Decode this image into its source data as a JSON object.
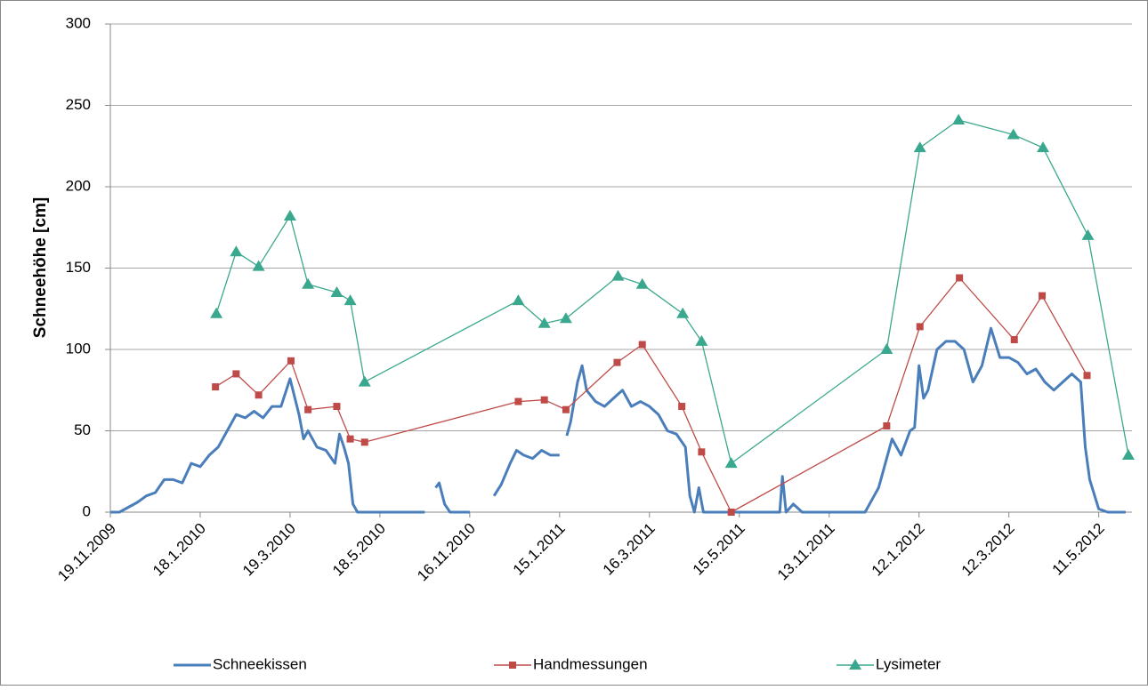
{
  "chart_data": {
    "type": "line",
    "y_label": "Schneehöhe [cm]",
    "xlim": [
      0,
      11.37
    ],
    "xticks": [
      {
        "value": 0,
        "label": "19.11.2009"
      },
      {
        "value": 1,
        "label": "18.1.2010"
      },
      {
        "value": 2,
        "label": "19.3.2010"
      },
      {
        "value": 3,
        "label": "18.5.2010"
      },
      {
        "value": 4,
        "label": "16.11.2010"
      },
      {
        "value": 5,
        "label": "15.1.2011"
      },
      {
        "value": 6,
        "label": "16.3.2011"
      },
      {
        "value": 7,
        "label": "15.5.2011"
      },
      {
        "value": 8,
        "label": "13.11.2011"
      },
      {
        "value": 9,
        "label": "12.1.2012"
      },
      {
        "value": 10,
        "label": "12.3.2012"
      },
      {
        "value": 11,
        "label": "11.5.2012"
      }
    ],
    "ylim": [
      0,
      300
    ],
    "yticks": [
      0,
      50,
      100,
      150,
      200,
      250,
      300
    ],
    "grid": true,
    "legend": "bottom",
    "series": [
      {
        "name": "Schneekissen",
        "color": "#4a7ebb",
        "marker": "none",
        "x": [
          0,
          0.1,
          0.2,
          0.3,
          0.4,
          0.5,
          0.6,
          0.7,
          0.8,
          0.9,
          1.0,
          1.1,
          1.2,
          1.3,
          1.4,
          1.5,
          1.6,
          1.7,
          1.8,
          1.9,
          2.0,
          2.1,
          2.15,
          2.2,
          2.3,
          2.4,
          2.5,
          2.55,
          2.6,
          2.65,
          2.7,
          2.75,
          3.0,
          3.5,
          3.56,
          3.62,
          3.66,
          3.72,
          3.78,
          4.0,
          4.1,
          4.27,
          4.35,
          4.45,
          4.52,
          4.6,
          4.7,
          4.8,
          4.9,
          5.0,
          5.04,
          5.08,
          5.12,
          5.2,
          5.25,
          5.3,
          5.4,
          5.5,
          5.6,
          5.7,
          5.8,
          5.9,
          6.0,
          6.1,
          6.2,
          6.3,
          6.4,
          6.45,
          6.5,
          6.55,
          6.6,
          7.0,
          7.45,
          7.48,
          7.52,
          7.6,
          7.7,
          8.0,
          8.4,
          8.5,
          8.55,
          8.6,
          8.7,
          8.8,
          8.9,
          8.95,
          9.0,
          9.05,
          9.1,
          9.2,
          9.3,
          9.4,
          9.5,
          9.6,
          9.7,
          9.8,
          9.9,
          10.0,
          10.1,
          10.2,
          10.3,
          10.4,
          10.5,
          10.6,
          10.7,
          10.8,
          10.85,
          10.9,
          11.0,
          11.1,
          11.3
        ],
        "values": [
          0,
          0,
          3,
          6,
          10,
          12,
          20,
          20,
          18,
          30,
          28,
          35,
          40,
          50,
          60,
          58,
          62,
          58,
          65,
          65,
          82,
          60,
          45,
          50,
          40,
          38,
          30,
          48,
          40,
          30,
          5,
          0,
          0,
          0,
          null,
          15,
          18,
          5,
          0,
          0,
          null,
          10,
          17,
          30,
          38,
          35,
          33,
          38,
          35,
          35,
          null,
          47,
          55,
          80,
          90,
          75,
          68,
          65,
          70,
          75,
          65,
          68,
          65,
          60,
          50,
          48,
          40,
          10,
          0,
          15,
          0,
          0,
          0,
          22,
          0,
          5,
          0,
          0,
          0,
          10,
          15,
          25,
          45,
          35,
          50,
          52,
          90,
          70,
          75,
          100,
          105,
          105,
          100,
          80,
          90,
          113,
          95,
          95,
          92,
          85,
          88,
          80,
          75,
          80,
          85,
          80,
          40,
          20,
          2,
          0,
          0
        ]
      },
      {
        "name": "Handmessungen",
        "color": "#be4b48",
        "marker": "square",
        "x": [
          1.17,
          1.4,
          1.65,
          2.01,
          2.2,
          2.52,
          2.67,
          2.83,
          4.54,
          4.83,
          5.07,
          5.64,
          5.92,
          6.36,
          6.58,
          6.91,
          8.64,
          9.01,
          9.45,
          10.06,
          10.37,
          10.87
        ],
        "values": [
          77,
          85,
          72,
          93,
          63,
          65,
          45,
          43,
          68,
          69,
          63,
          92,
          103,
          65,
          37,
          0,
          53,
          114,
          144,
          106,
          133,
          84
        ]
      },
      {
        "name": "Lysimeter",
        "color": "#3aa88e",
        "marker": "triangle",
        "x": [
          1.18,
          1.4,
          1.65,
          2.0,
          2.2,
          2.52,
          2.67,
          2.83,
          4.54,
          4.83,
          5.07,
          5.65,
          5.92,
          6.37,
          6.58,
          6.91,
          8.64,
          9.01,
          9.44,
          10.05,
          10.38,
          10.88,
          11.33
        ],
        "values": [
          122,
          160,
          151,
          182,
          140,
          135,
          130,
          80,
          130,
          116,
          119,
          145,
          140,
          122,
          105,
          30,
          100,
          224,
          241,
          232,
          224,
          170,
          35
        ]
      }
    ]
  }
}
